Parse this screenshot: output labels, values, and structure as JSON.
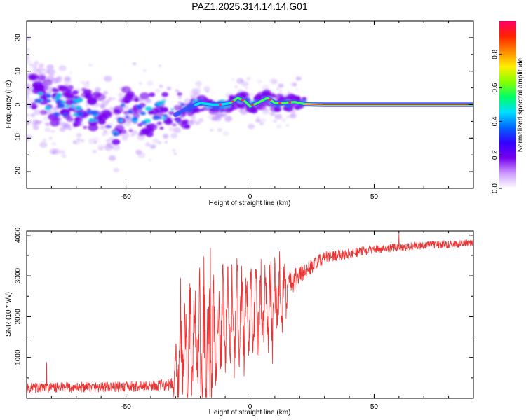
{
  "title": "PAZ1.2025.314.14.14.G01",
  "chart_data": [
    {
      "type": "heatmap",
      "xlabel": "Height of straight line (km)",
      "ylabel": "Frequency (Hz)",
      "xlim": [
        -90,
        90
      ],
      "ylim": [
        -25,
        25
      ],
      "x_ticks": [
        -50,
        0,
        50
      ],
      "y_ticks": [
        -20,
        -10,
        0,
        10,
        20
      ],
      "x_tick_labels": [
        "-50",
        "0",
        "50"
      ],
      "y_tick_labels": [
        "-20",
        "-10",
        "0",
        "10",
        "20"
      ],
      "ridge": [
        {
          "x": -85,
          "y": 3
        },
        {
          "x": -78,
          "y": 0
        },
        {
          "x": -70,
          "y": -1
        },
        {
          "x": -62,
          "y": -2
        },
        {
          "x": -55,
          "y": -8
        },
        {
          "x": -50,
          "y": -1
        },
        {
          "x": -45,
          "y": -3
        },
        {
          "x": -40,
          "y": -3
        },
        {
          "x": -35,
          "y": -2
        },
        {
          "x": -30,
          "y": -3
        },
        {
          "x": -25,
          "y": -1
        },
        {
          "x": -20,
          "y": 0.5
        },
        {
          "x": -15,
          "y": 0
        },
        {
          "x": -12,
          "y": 0
        },
        {
          "x": -8,
          "y": 0.5
        },
        {
          "x": -5,
          "y": 2
        },
        {
          "x": -2,
          "y": 1
        },
        {
          "x": 0,
          "y": -0.5
        },
        {
          "x": 3,
          "y": 0.5
        },
        {
          "x": 7,
          "y": 2
        },
        {
          "x": 10,
          "y": 0.5
        },
        {
          "x": 13,
          "y": 0.5
        },
        {
          "x": 18,
          "y": 0.8
        },
        {
          "x": 22,
          "y": 0.2
        },
        {
          "x": 30,
          "y": 0
        },
        {
          "x": 60,
          "y": 0
        },
        {
          "x": 90,
          "y": 0
        }
      ],
      "colorbar": {
        "label": "Normalized spectral amplitude",
        "range": [
          0,
          1
        ],
        "ticks": [
          0.0,
          0.2,
          0.4,
          0.6,
          0.8
        ],
        "tick_labels": [
          "0.0",
          "0.2",
          "0.4",
          "0.6",
          "0.8"
        ],
        "colors": [
          "#ffffff",
          "#cc99ff",
          "#7700ee",
          "#3300ff",
          "#0066ff",
          "#00ddff",
          "#00ff66",
          "#88ff00",
          "#ffee00",
          "#ff8800",
          "#ff2200",
          "#ff0066"
        ]
      }
    },
    {
      "type": "line",
      "xlabel": "Height of straight line (km)",
      "ylabel": "SNR (10 * v/v)",
      "xlim": [
        -90,
        90
      ],
      "ylim": [
        0,
        4100
      ],
      "x_ticks": [
        -50,
        0,
        50
      ],
      "y_ticks": [
        1000,
        2000,
        3000,
        4000
      ],
      "x_tick_labels": [
        "-50",
        "0",
        "50"
      ],
      "y_tick_labels": [
        "1000",
        "2000",
        "3000",
        "4000"
      ],
      "series": [
        {
          "name": "SNR",
          "color": "#ee3333",
          "envelope": [
            {
              "x": -90,
              "base": 250,
              "amp": 250
            },
            {
              "x": -50,
              "base": 280,
              "amp": 260
            },
            {
              "x": -40,
              "base": 300,
              "amp": 250
            },
            {
              "x": -31,
              "base": 350,
              "amp": 300
            },
            {
              "x": -28,
              "base": 1100,
              "amp": 1300
            },
            {
              "x": -22,
              "base": 1300,
              "amp": 1500
            },
            {
              "x": -16,
              "base": 900,
              "amp": 2300
            },
            {
              "x": -15,
              "base": 1400,
              "amp": 1300
            },
            {
              "x": -10,
              "base": 1800,
              "amp": 1200
            },
            {
              "x": 0,
              "base": 2100,
              "amp": 1200
            },
            {
              "x": 10,
              "base": 2300,
              "amp": 1100
            },
            {
              "x": 15,
              "base": 2800,
              "amp": 700
            },
            {
              "x": 22,
              "base": 3100,
              "amp": 400
            },
            {
              "x": 30,
              "base": 3450,
              "amp": 300
            },
            {
              "x": 50,
              "base": 3650,
              "amp": 200
            },
            {
              "x": 70,
              "base": 3750,
              "amp": 200
            },
            {
              "x": 90,
              "base": 3800,
              "amp": 180
            }
          ],
          "notable_points": [
            {
              "x": -82,
              "y": 880
            },
            {
              "x": -28,
              "y": 2950
            },
            {
              "x": -16,
              "y": 3680
            },
            {
              "x": 9,
              "y": 850
            },
            {
              "x": 60,
              "y": 4050
            }
          ]
        }
      ]
    }
  ]
}
